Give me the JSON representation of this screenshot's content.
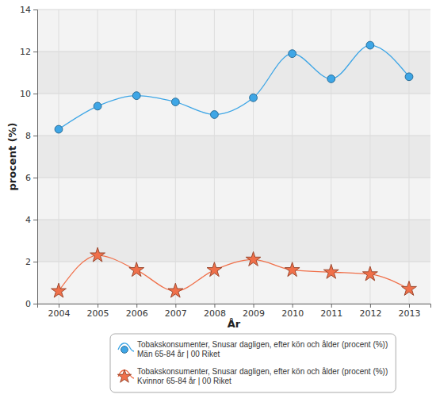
{
  "chart_data": {
    "type": "line",
    "x_label": "År",
    "y_label": "procent (%)",
    "categories": [
      "2004",
      "2005",
      "2006",
      "2007",
      "2008",
      "2009",
      "2010",
      "2011",
      "2012",
      "2013"
    ],
    "series": [
      {
        "name": "Tobakskonsumenter, Snusar dagligen, efter kön och ålder (procent (%))\nMän 65-84 år | 00 Riket",
        "color": "#3ea6e6",
        "marker": "circle",
        "values": [
          8.3,
          9.4,
          9.9,
          9.6,
          9.0,
          9.8,
          11.9,
          10.7,
          12.3,
          10.8
        ]
      },
      {
        "name": "Tobakskonsumenter, Snusar dagligen, efter kön och ålder (procent (%))\nKvinnor 65-84 år | 00 Riket",
        "color": "#f0704a",
        "marker": "star",
        "values": [
          0.6,
          2.3,
          1.6,
          0.6,
          1.6,
          2.1,
          1.6,
          1.5,
          1.4,
          0.7
        ]
      }
    ],
    "ylim": [
      0,
      14
    ],
    "yticks": [
      0,
      2,
      4,
      6,
      8,
      10,
      12,
      14
    ],
    "grid": true,
    "legend": "bottom"
  }
}
